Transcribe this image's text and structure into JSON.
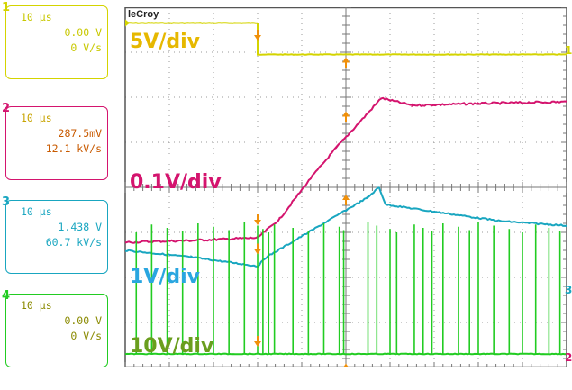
{
  "brand": "leCroy",
  "channels": [
    {
      "num": "1",
      "timebase": "10 µs",
      "offset": "0.00 V",
      "slope": "0 V/s",
      "color": "#d4d400",
      "scale": "5V/div",
      "scale_color": "#e6b800"
    },
    {
      "num": "2",
      "timebase": "10 µs",
      "offset": "287.5mV",
      "slope": "12.1 kV/s",
      "color": "#d4146e",
      "scale": "0.1V/div",
      "scale_color": "#d4146e"
    },
    {
      "num": "3",
      "timebase": "10 µs",
      "offset": "1.438 V",
      "slope": "60.7 kV/s",
      "color": "#19a6c0",
      "scale": "1V/div",
      "scale_color": "#2aa6e0"
    },
    {
      "num": "4",
      "timebase": "10 µs",
      "offset": "0.00 V",
      "slope": "0 V/s",
      "color": "#22cc22",
      "scale": "10V/div",
      "scale_color": "#6a9e1e"
    }
  ],
  "right_markers": [
    "1",
    "3",
    "2"
  ],
  "cursor_color": "#f0900a",
  "chart_data": {
    "type": "line",
    "x_divisions": 10,
    "y_divisions": 8,
    "grid": true,
    "x_unit": "div",
    "y_unit": "div",
    "series": [
      {
        "name": "1",
        "x": [
          0,
          3.0,
          3.0,
          10
        ],
        "y": [
          7.65,
          7.65,
          6.95,
          6.95
        ]
      },
      {
        "name": "2",
        "x": [
          0,
          1.5,
          3.0,
          3.5,
          4.2,
          4.8,
          5.5,
          5.8,
          6.5,
          8,
          10
        ],
        "y": [
          2.78,
          2.82,
          2.88,
          3.3,
          4.2,
          4.9,
          5.65,
          5.98,
          5.82,
          5.86,
          5.9
        ]
      },
      {
        "name": "3",
        "x": [
          0,
          1.5,
          3.0,
          3.2,
          5.5,
          5.75,
          5.9,
          7,
          8.5,
          10
        ],
        "y": [
          2.6,
          2.45,
          2.25,
          2.45,
          3.78,
          4.0,
          3.62,
          3.46,
          3.25,
          3.15
        ]
      },
      {
        "name": "4",
        "x": [
          0,
          10
        ],
        "y": [
          0.3,
          0.3
        ]
      }
    ],
    "pulses_ch4": [
      0.25,
      0.6,
      0.95,
      1.3,
      1.65,
      2.0,
      2.35,
      2.7,
      3.0,
      3.12,
      3.25,
      3.38,
      3.8,
      4.15,
      4.5,
      4.85,
      4.95,
      5.5,
      5.7,
      6.0,
      6.15,
      6.55,
      6.75,
      6.95,
      7.2,
      7.55,
      7.8,
      8.0,
      8.35,
      8.7,
      9.0,
      9.3,
      9.6,
      9.85
    ],
    "cursors": [
      {
        "ch": "1",
        "x": 3.0,
        "y": 7.3,
        "dir": "down"
      },
      {
        "ch": "1",
        "x": 5.0,
        "y": 6.85,
        "dir": "up"
      },
      {
        "ch": "2",
        "x": 3.0,
        "y": 3.2,
        "dir": "down"
      },
      {
        "ch": "2",
        "x": 5.0,
        "y": 5.65,
        "dir": "up"
      },
      {
        "ch": "3",
        "x": 3.0,
        "y": 2.55,
        "dir": "down"
      },
      {
        "ch": "3",
        "x": 5.0,
        "y": 3.8,
        "dir": "up"
      },
      {
        "ch": "4",
        "x": 3.0,
        "y": 0.5,
        "dir": "down"
      },
      {
        "ch": "4",
        "x": 5.0,
        "y": 0.05,
        "dir": "up"
      }
    ]
  }
}
